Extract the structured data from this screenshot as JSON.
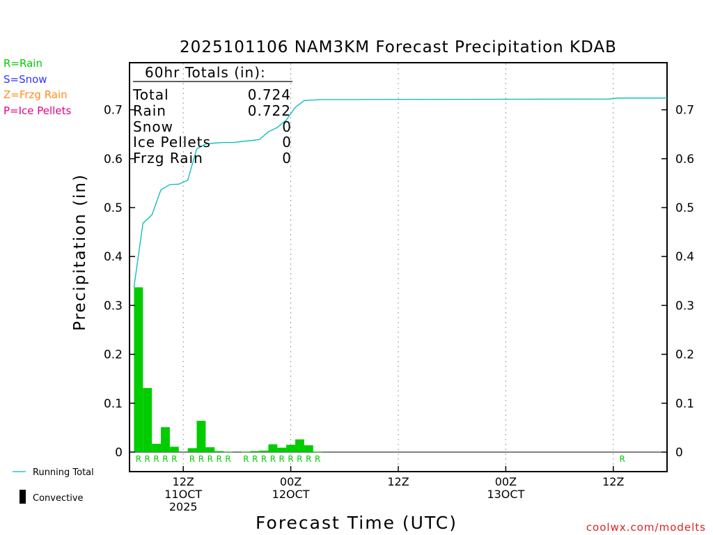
{
  "chart_data": {
    "type": "bar",
    "title": "2025101106 NAM3KM Forecast Precipitation KDAB",
    "xlabel": "Forecast Time (UTC)",
    "ylabel": "Precipitation (in)",
    "ylim": [
      -0.04,
      0.8
    ],
    "yticks": [
      "0",
      "0.1",
      "0.2",
      "0.3",
      "0.4",
      "0.5",
      "0.6",
      "0.7"
    ],
    "xlim_hours": [
      0,
      60
    ],
    "xticks": [
      {
        "hour": 6,
        "line1": "12Z",
        "line2": "11OCT",
        "line3": "2025"
      },
      {
        "hour": 18,
        "line1": "00Z",
        "line2": "12OCT",
        "line3": ""
      },
      {
        "hour": 30,
        "line1": "12Z",
        "line2": "",
        "line3": ""
      },
      {
        "hour": 42,
        "line1": "00Z",
        "line2": "13OCT",
        "line3": ""
      },
      {
        "hour": 54,
        "line1": "12Z",
        "line2": "",
        "line3": ""
      }
    ],
    "legend_types": [
      {
        "text": "R=Rain",
        "color": "#00cc00"
      },
      {
        "text": "S=Snow",
        "color": "#3333ff"
      },
      {
        "text": "Z=Frzg Rain",
        "color": "#ff8c1a"
      },
      {
        "text": "P=Ice Pellets",
        "color": "#e6007e"
      }
    ],
    "legend_lines": {
      "running_total": "Running Total",
      "convective": "Convective"
    },
    "totals": {
      "header": "60hr Totals (in):",
      "rows": [
        {
          "label": "Total",
          "value": "0.724"
        },
        {
          "label": "Rain",
          "value": "0.722"
        },
        {
          "label": "Snow",
          "value": "0"
        },
        {
          "label": "Ice Pellets",
          "value": "0"
        },
        {
          "label": "Frzg Rain",
          "value": "0"
        }
      ]
    },
    "series": [
      {
        "name": "Hourly Rain",
        "type": "bar",
        "color": "#00cc00",
        "hours": [
          1,
          2,
          3,
          4,
          5,
          7,
          8,
          9,
          10,
          11,
          13,
          14,
          15,
          16,
          17,
          18,
          19,
          20,
          21
        ],
        "values": [
          0.337,
          0.131,
          0.017,
          0.051,
          0.011,
          0.008,
          0.064,
          0.01,
          0.002,
          0.001,
          0.001,
          0.002,
          0.003,
          0.016,
          0.009,
          0.015,
          0.026,
          0.014,
          0.001
        ]
      },
      {
        "name": "Running Total",
        "type": "line",
        "color": "#00bbbb",
        "hours": [
          0.5,
          1.5,
          2.5,
          3.5,
          4.5,
          5.5,
          6.5,
          7.5,
          8.5,
          9.5,
          10.5,
          11.5,
          12.5,
          13.5,
          14.5,
          15.5,
          16.5,
          17.5,
          18.5,
          19.5,
          20.5,
          21.5,
          22.5,
          53.5,
          54.5,
          60
        ],
        "values": [
          0.337,
          0.468,
          0.485,
          0.536,
          0.547,
          0.548,
          0.556,
          0.62,
          0.63,
          0.632,
          0.633,
          0.633,
          0.635,
          0.637,
          0.639,
          0.655,
          0.664,
          0.679,
          0.705,
          0.719,
          0.72,
          0.721,
          0.721,
          0.722,
          0.724,
          0.724
        ]
      }
    ],
    "type_markers": {
      "letter": "R",
      "hours": [
        1,
        2,
        3,
        4,
        5,
        7,
        8,
        9,
        10,
        11,
        13,
        14,
        15,
        16,
        17,
        18,
        19,
        20,
        21,
        55
      ]
    },
    "watermark": "coolwx.com/modelts"
  }
}
